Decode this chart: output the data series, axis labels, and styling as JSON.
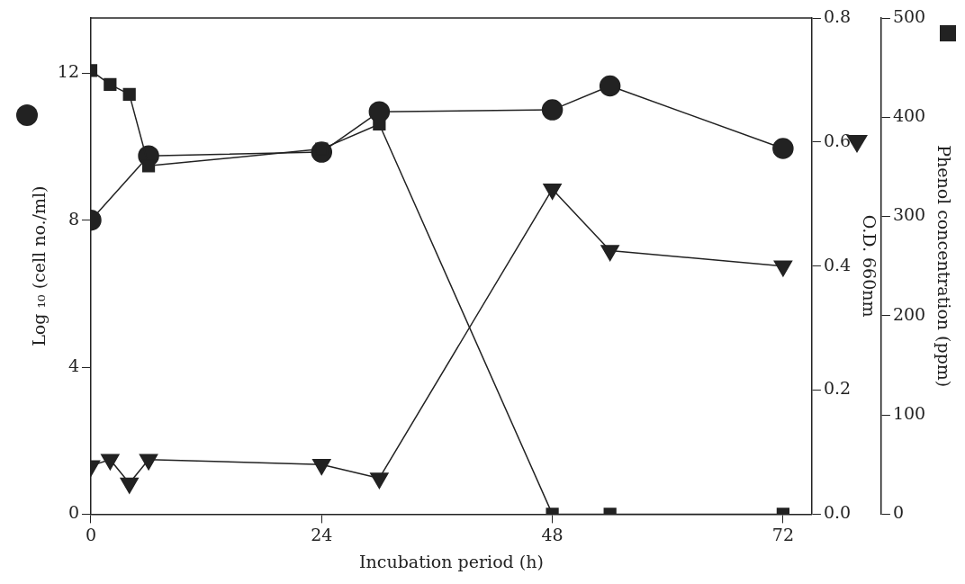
{
  "chart_data": {
    "type": "line",
    "xlabel": "Incubation period (h)",
    "ylabel": "Log ₁₀ (cell no./ml)",
    "y2label": "O.D. 660nm",
    "y3label": "Phenol concentration (ppm)",
    "xlim": [
      0,
      75
    ],
    "xticks": [
      0,
      24,
      48,
      72
    ],
    "ylim": [
      0,
      13.5
    ],
    "yticks": [
      0,
      4,
      8,
      12
    ],
    "y2lim": [
      0,
      0.8
    ],
    "y2ticks": [
      {
        "value": 0,
        "label": "0.0"
      },
      {
        "value": 0.2,
        "label": "0.2"
      },
      {
        "value": 0.4,
        "label": "0.4"
      },
      {
        "value": 0.6,
        "label": "0.6"
      },
      {
        "value": 0.8,
        "label": "0.8"
      }
    ],
    "y3lim": [
      0,
      500
    ],
    "y3ticks": [
      0,
      100,
      200,
      300,
      400,
      500
    ],
    "grid": false,
    "legend": false,
    "line_style": "solid",
    "series": [
      {
        "color": "#222222",
        "marker": "circle",
        "axis": "y",
        "x": [
          0,
          6,
          24,
          30,
          48,
          54,
          72
        ],
        "values": [
          8.0,
          9.75,
          9.85,
          10.95,
          11.0,
          11.65,
          9.95
        ]
      },
      {
        "color": "#222222",
        "marker": "square",
        "axis": "y3",
        "x": [
          0,
          2,
          4,
          6,
          24,
          30,
          48,
          54,
          72
        ],
        "values": [
          447,
          433,
          423,
          351,
          368,
          393,
          0,
          0,
          0
        ]
      },
      {
        "color": "#222222",
        "marker": "triangle",
        "axis": "y2",
        "x": [
          0,
          2,
          4,
          6,
          24,
          30,
          48,
          54,
          72
        ],
        "values": [
          0.078,
          0.088,
          0.05,
          0.088,
          0.08,
          0.058,
          0.524,
          0.425,
          0.4
        ]
      }
    ]
  }
}
